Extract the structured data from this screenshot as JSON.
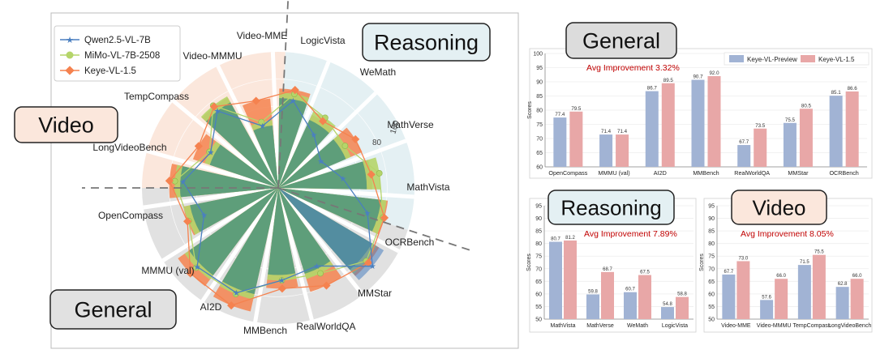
{
  "radar": {
    "legend": [
      "Qwen2.5-VL-7B",
      "MiMo-VL-7B-2508",
      "Keye-VL-1.5"
    ],
    "sections": [
      "Reasoning",
      "Video",
      "General"
    ],
    "axes": [
      "Video-MME",
      "LogicVista",
      "WeMath",
      "MathVerse",
      "MathVista",
      "OCRBench",
      "MMStar",
      "RealWorldQA",
      "MMBench",
      "AI2D",
      "MMMU (val)",
      "OpenCompass",
      "LongVideoBench",
      "TempCompass",
      "Video-MMMU"
    ],
    "tick_labels": [
      "80",
      "100"
    ]
  },
  "colors": {
    "qwen": "#4a7fc0",
    "mimo": "#b5d56a",
    "keye": "#f5824f",
    "fill_green": "#5e9e7a",
    "video_bg": "#fbe7dc",
    "reasoning_bg": "#e4f0f3",
    "general_bg": "#e1e1e1",
    "bar_preview": "#a1b3d4",
    "bar_keye": "#e8a7a7",
    "improvement_text": "#c00000"
  },
  "chart_data": [
    {
      "type": "radar",
      "categories": [
        "Video-MME",
        "LogicVista",
        "WeMath",
        "MathVerse",
        "MathVista",
        "OCRBench",
        "MMStar",
        "RealWorldQA",
        "MMBench",
        "AI2D",
        "MMMU (val)",
        "OpenCompass",
        "LongVideoBench",
        "TempCompass",
        "Video-MMMU"
      ],
      "series": [
        {
          "name": "Qwen2.5-VL-7B",
          "values": [
            65,
            47,
            37,
            48,
            68,
            90,
            64,
            68,
            83,
            83,
            58,
            70,
            56,
            72,
            47
          ]
        },
        {
          "name": "MiMo-VL-7B-2508",
          "values": [
            70,
            62,
            58,
            75,
            80,
            84,
            70,
            68,
            84,
            84,
            70,
            76,
            57,
            77,
            50
          ]
        },
        {
          "name": "Keye-VL-1.5",
          "values": [
            73,
            59,
            67,
            69,
            81,
            86,
            80,
            74,
            93,
            90,
            71,
            80,
            66,
            76,
            66
          ]
        }
      ],
      "tick_labels": [
        80,
        100
      ],
      "range": [
        0,
        100
      ]
    },
    {
      "type": "bar",
      "title": "General",
      "annotation": "Avg Improvement 3.32%",
      "ylabel": "Scores",
      "categories": [
        "OpenCompass",
        "MMMU (val)",
        "AI2D",
        "MMBench",
        "RealWorldQA",
        "MMStar",
        "OCRBench"
      ],
      "series": [
        {
          "name": "Keye-VL-Preview",
          "values": [
            77.4,
            71.4,
            86.7,
            90.7,
            67.7,
            75.5,
            85.1
          ]
        },
        {
          "name": "Keye-VL-1.5",
          "values": [
            79.5,
            71.4,
            89.5,
            92.0,
            73.5,
            80.5,
            86.6
          ]
        }
      ],
      "ylim": [
        60,
        100
      ],
      "yticks": [
        60,
        65,
        70,
        75,
        80,
        85,
        90,
        95,
        100
      ]
    },
    {
      "type": "bar",
      "title": "Reasoning",
      "annotation": "Avg Improvement 7.89%",
      "ylabel": "Scores",
      "categories": [
        "MathVista",
        "MathVerse",
        "WeMath",
        "LogicVista"
      ],
      "series": [
        {
          "name": "Keye-VL-Preview",
          "values": [
            80.7,
            59.8,
            60.7,
            54.8
          ]
        },
        {
          "name": "Keye-VL-1.5",
          "values": [
            81.2,
            68.7,
            67.5,
            58.8
          ]
        }
      ],
      "ylim": [
        50,
        95
      ],
      "yticks": [
        50,
        55,
        60,
        65,
        70,
        75,
        80,
        85,
        90,
        95
      ]
    },
    {
      "type": "bar",
      "title": "Video",
      "annotation": "Avg Improvement 8.05%",
      "ylabel": "Scores",
      "categories": [
        "Video-MME",
        "Video-MMMU",
        "TempCompass",
        "LongVideoBench"
      ],
      "series": [
        {
          "name": "Keye-VL-Preview",
          "values": [
            67.7,
            57.6,
            71.5,
            62.8
          ]
        },
        {
          "name": "Keye-VL-1.5",
          "values": [
            73.0,
            66.0,
            75.5,
            66.0
          ]
        }
      ],
      "ylim": [
        50,
        95
      ],
      "yticks": [
        50,
        55,
        60,
        65,
        70,
        75,
        80,
        85,
        90,
        95
      ]
    }
  ]
}
